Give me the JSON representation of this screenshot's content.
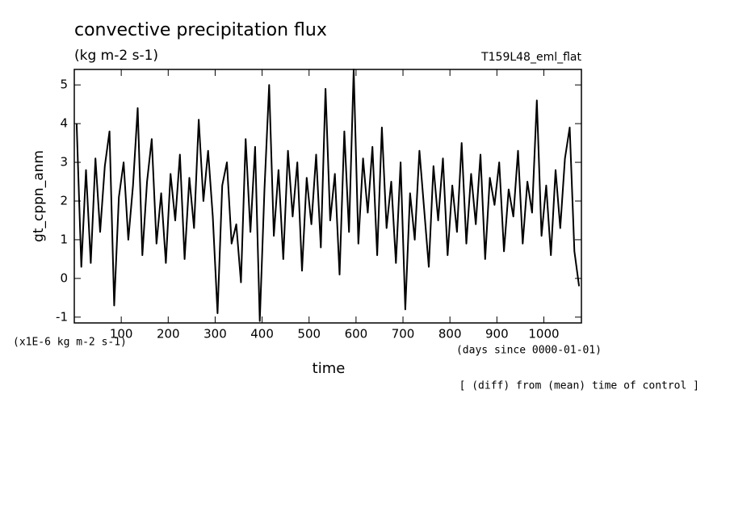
{
  "chart_data": {
    "type": "line",
    "title": "convective precipitation flux",
    "subtitle": "(kg m-2 s-1)",
    "experiment": "T159L48_eml_flat",
    "y_label": "gt_cppn_anm",
    "y_units": "(x1E-6 kg m-2 s-1)",
    "x_label": "time",
    "x_units": "(days since 0000-01-01)",
    "note": "[ (diff) from (mean) time of control ]",
    "color": "#000000",
    "xlim": [
      0,
      1080
    ],
    "xticks": [
      100,
      200,
      300,
      400,
      500,
      600,
      700,
      800,
      900,
      1000
    ],
    "ylim": [
      -1.15,
      5.4
    ],
    "yticks": [
      -1,
      0,
      1,
      2,
      3,
      4,
      5
    ],
    "x": [
      5,
      15,
      25,
      35,
      45,
      55,
      65,
      75,
      85,
      95,
      105,
      115,
      125,
      135,
      145,
      155,
      165,
      175,
      185,
      195,
      205,
      215,
      225,
      235,
      245,
      255,
      265,
      275,
      285,
      295,
      305,
      315,
      325,
      335,
      345,
      355,
      365,
      375,
      385,
      395,
      405,
      415,
      425,
      435,
      445,
      455,
      465,
      475,
      485,
      495,
      505,
      515,
      525,
      535,
      545,
      555,
      565,
      575,
      585,
      595,
      605,
      615,
      625,
      635,
      645,
      655,
      665,
      675,
      685,
      695,
      705,
      715,
      725,
      735,
      745,
      755,
      765,
      775,
      785,
      795,
      805,
      815,
      825,
      835,
      845,
      855,
      865,
      875,
      885,
      895,
      905,
      915,
      925,
      935,
      945,
      955,
      965,
      975,
      985,
      995,
      1005,
      1015,
      1025,
      1035,
      1045,
      1055,
      1065,
      1075
    ],
    "values": [
      4.0,
      0.3,
      2.8,
      0.4,
      3.1,
      1.2,
      2.9,
      3.8,
      -0.7,
      2.1,
      3.0,
      1.0,
      2.4,
      4.4,
      0.6,
      2.5,
      3.6,
      0.9,
      2.2,
      0.4,
      2.7,
      1.5,
      3.2,
      0.5,
      2.6,
      1.3,
      4.1,
      2.0,
      3.3,
      1.6,
      -0.9,
      2.4,
      3.0,
      0.9,
      1.4,
      -0.1,
      3.6,
      1.2,
      3.4,
      -1.1,
      2.3,
      5.0,
      1.1,
      2.8,
      0.5,
      3.3,
      1.6,
      3.0,
      0.2,
      2.6,
      1.4,
      3.2,
      0.8,
      4.9,
      1.5,
      2.7,
      0.1,
      3.8,
      1.2,
      5.4,
      0.9,
      3.1,
      1.7,
      3.4,
      0.6,
      3.9,
      1.3,
      2.5,
      0.4,
      3.0,
      -0.8,
      2.2,
      1.0,
      3.3,
      1.8,
      0.3,
      2.9,
      1.5,
      3.1,
      0.6,
      2.4,
      1.2,
      3.5,
      0.9,
      2.7,
      1.4,
      3.2,
      0.5,
      2.6,
      1.9,
      3.0,
      0.7,
      2.3,
      1.6,
      3.3,
      0.9,
      2.5,
      1.7,
      4.6,
      1.1,
      2.4,
      0.6,
      2.8,
      1.3,
      3.1,
      3.9,
      0.7,
      -0.2
    ]
  }
}
